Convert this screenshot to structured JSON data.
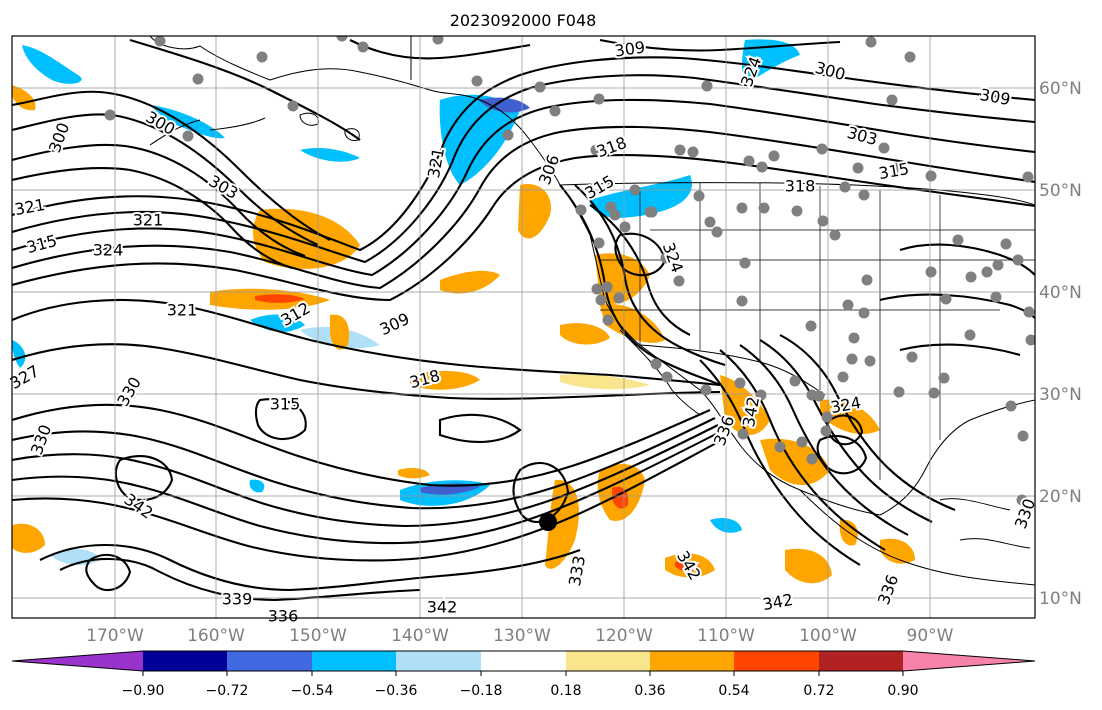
{
  "title": "2023092000 F048",
  "map": {
    "lon_ticks": [
      "170°W",
      "160°W",
      "150°W",
      "140°W",
      "130°W",
      "120°W",
      "110°W",
      "100°W",
      "90°W"
    ],
    "lat_ticks": [
      "60°N",
      "50°N",
      "40°N",
      "30°N",
      "20°N",
      "10°N"
    ],
    "contour_labels": [
      "309",
      "300",
      "309",
      "303",
      "300",
      "300",
      "303",
      "315",
      "318",
      "321",
      "315",
      "324",
      "321",
      "321",
      "312",
      "309",
      "318",
      "315",
      "306",
      "321",
      "324",
      "324",
      "327",
      "315",
      "330",
      "318",
      "330",
      "342",
      "339",
      "342",
      "336",
      "342",
      "342",
      "336",
      "324",
      "336",
      "330",
      "333",
      "342"
    ],
    "colors": {
      "land_border": "#000000",
      "contour": "#000000",
      "gridline": "#999999",
      "station_dot": "#808080",
      "cyclone_marker": "#000000",
      "shade_weak_negative": "#b0e0f8",
      "shade_negative": "#00bfff",
      "shade_strong_negative": "#4060d0",
      "shade_weak_positive": "#f8e58c",
      "shade_positive": "#ffa500",
      "shade_strong_positive": "#ff4500"
    }
  },
  "colorbar": {
    "labels": [
      "−0.90",
      "−0.72",
      "−0.54",
      "−0.36",
      "−0.18",
      "0.18",
      "0.36",
      "0.54",
      "0.72",
      "0.90"
    ],
    "colors": [
      "#9933cc",
      "#000099",
      "#4169e1",
      "#00bfff",
      "#b0e0f8",
      "#ffffff",
      "#f8e58c",
      "#ffa500",
      "#ff4500",
      "#b22222",
      "#f783ac"
    ]
  }
}
